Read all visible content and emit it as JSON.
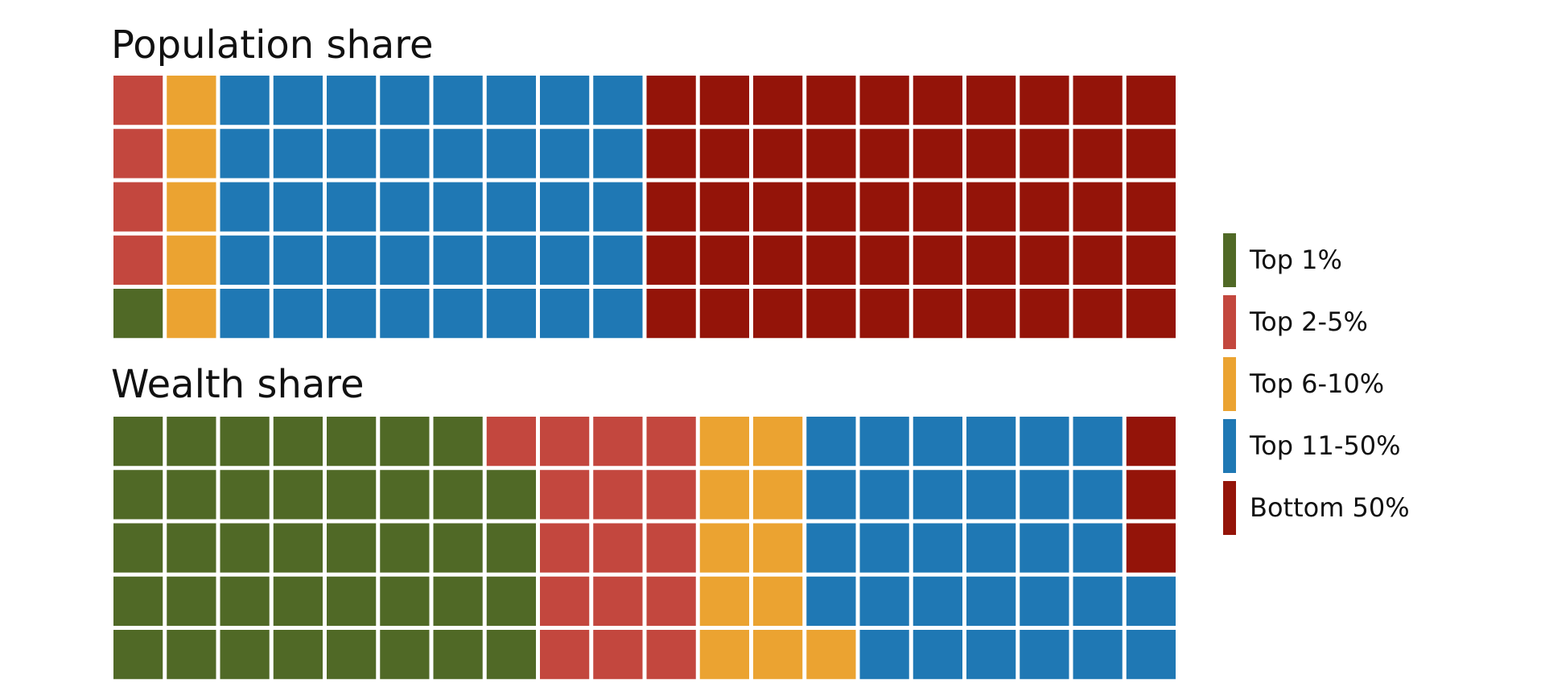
{
  "chart_data": [
    {
      "type": "waffle",
      "title": "Population share",
      "categories": [
        "Top 1%",
        "Top 2-5%",
        "Top 6-10%",
        "Top 11-50%",
        "Bottom 50%"
      ],
      "values": [
        1,
        4,
        5,
        40,
        50
      ],
      "colors": [
        "#506926",
        "#c3473e",
        "#eba331",
        "#1f78b4",
        "#941409"
      ]
    },
    {
      "type": "waffle",
      "title": "Wealth share",
      "categories": [
        "Top 1%",
        "Top 2-5%",
        "Top 6-10%",
        "Top 11-50%",
        "Bottom 50%"
      ],
      "values": [
        39,
        16,
        11,
        31,
        3
      ],
      "colors": [
        "#506926",
        "#c3473e",
        "#eba331",
        "#1f78b4",
        "#941409"
      ]
    }
  ]
}
